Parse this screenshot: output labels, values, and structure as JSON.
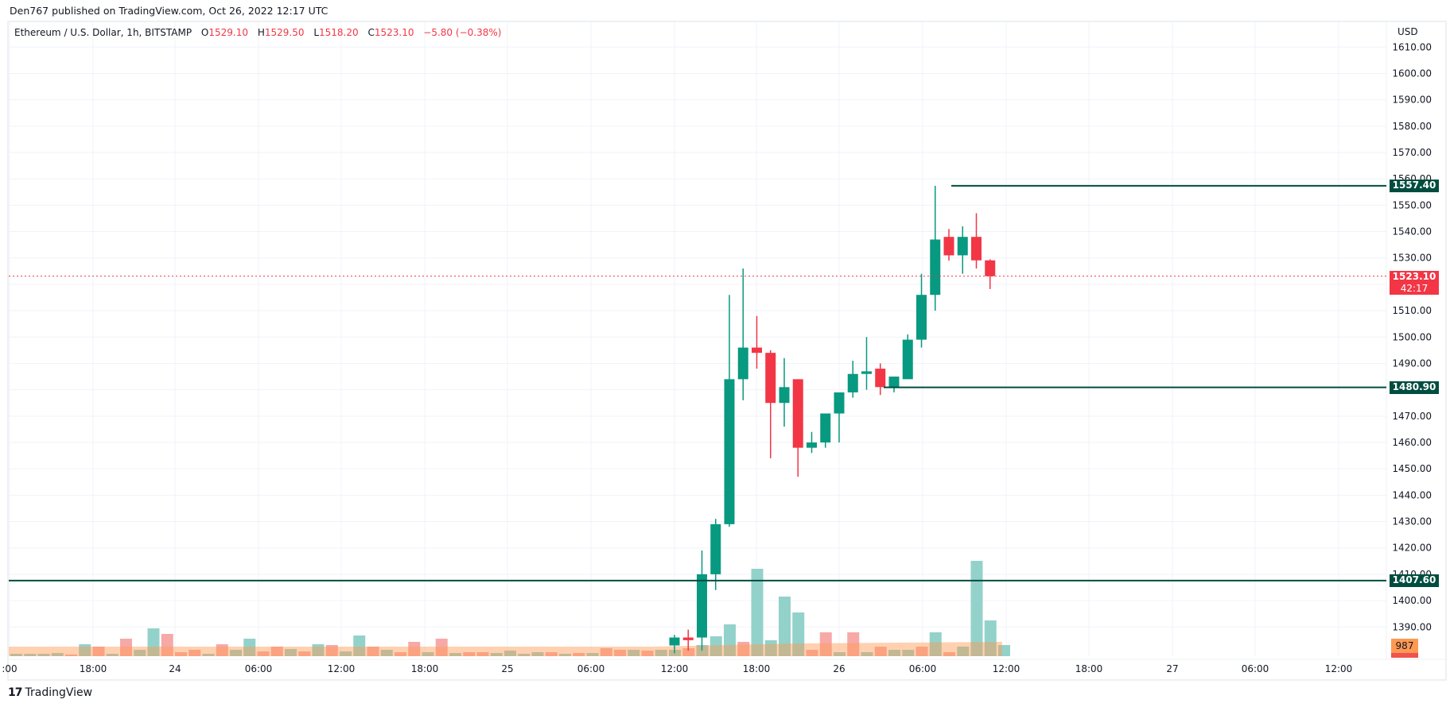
{
  "published": "Den767 published on TradingView.com, Oct 26, 2022 12:17 UTC",
  "legend": {
    "symbol": "Ethereum / U.S. Dollar, 1h, BITSTAMP",
    "open_label": "O",
    "open": "1529.10",
    "high_label": "H",
    "high": "1529.50",
    "low_label": "L",
    "low": "1518.20",
    "close_label": "C",
    "close": "1523.10",
    "change": "−5.80 (−0.38%)"
  },
  "price_axis": {
    "currency": "USD",
    "ticks": [
      "1610.00",
      "1600.00",
      "1590.00",
      "1580.00",
      "1570.00",
      "1560.00",
      "1550.00",
      "1540.00",
      "1530.00",
      "1520.00",
      "1510.00",
      "1500.00",
      "1490.00",
      "1480.00",
      "1470.00",
      "1460.00",
      "1450.00",
      "1440.00",
      "1430.00",
      "1420.00",
      "1410.00",
      "1400.00",
      "1390.00"
    ],
    "current_price": "1523.10",
    "countdown": "42:17",
    "levels": [
      "1557.40",
      "1480.90",
      "1407.60"
    ],
    "volume_label": "987"
  },
  "time_axis": {
    "ticks": [
      ":00",
      "18:00",
      "24",
      "06:00",
      "12:00",
      "18:00",
      "25",
      "06:00",
      "12:00",
      "18:00",
      "26",
      "06:00",
      "12:00",
      "18:00",
      "27",
      "06:00",
      "12:00"
    ]
  },
  "footer": {
    "logo": "17",
    "brand": "TradingView"
  },
  "colors": {
    "up": "#089981",
    "down": "#f23645",
    "level_line": "#004d40",
    "vol_up": "#93d2ca",
    "vol_down": "#f7a9a7",
    "vol_ma": "#fe9952"
  },
  "chart_data": {
    "type": "candlestick",
    "title": "Ethereum / U.S. Dollar, 1h, BITSTAMP",
    "ylabel": "USD",
    "ylim": [
      1385,
      1612
    ],
    "x": [
      "25 13:00",
      "25 14:00",
      "25 15:00",
      "25 16:00",
      "25 17:00",
      "25 18:00",
      "25 19:00",
      "25 20:00",
      "25 21:00",
      "25 22:00",
      "25 23:00",
      "26 00:00",
      "26 01:00",
      "26 02:00",
      "26 03:00",
      "26 04:00",
      "26 05:00",
      "26 06:00",
      "26 07:00",
      "26 08:00",
      "26 09:00",
      "26 10:00",
      "26 11:00",
      "26 12:00"
    ],
    "ohlc": [
      [
        1383,
        1387,
        1380,
        1386
      ],
      [
        1386,
        1389,
        1381,
        1385
      ],
      [
        1386,
        1419,
        1381,
        1410
      ],
      [
        1410,
        1431,
        1404,
        1429
      ],
      [
        1429,
        1516,
        1428,
        1484
      ],
      [
        1484,
        1526,
        1476,
        1496
      ],
      [
        1496,
        1508,
        1488,
        1494
      ],
      [
        1494,
        1495,
        1454,
        1475
      ],
      [
        1475,
        1492,
        1466,
        1481
      ],
      [
        1484,
        1484,
        1447,
        1458
      ],
      [
        1458,
        1464,
        1456,
        1460
      ],
      [
        1460,
        1470,
        1458,
        1471
      ],
      [
        1471,
        1476,
        1460,
        1479
      ],
      [
        1479,
        1491,
        1477,
        1486
      ],
      [
        1486,
        1500,
        1480,
        1487
      ],
      [
        1488,
        1490,
        1478,
        1481
      ],
      [
        1481,
        1485,
        1479,
        1485
      ],
      [
        1484,
        1501,
        1494,
        1499
      ],
      [
        1499,
        1524,
        1496,
        1516
      ],
      [
        1516,
        1557.4,
        1510,
        1537
      ],
      [
        1538,
        1541,
        1529,
        1531
      ],
      [
        1531,
        1542,
        1524,
        1538
      ],
      [
        1538,
        1547,
        1526,
        1529.1
      ],
      [
        1529.1,
        1529.5,
        1518.2,
        1523.1
      ]
    ],
    "horizontal_levels": [
      1557.4,
      1480.9,
      1407.6
    ],
    "current_price": 1523.1,
    "volume_last": 987
  }
}
